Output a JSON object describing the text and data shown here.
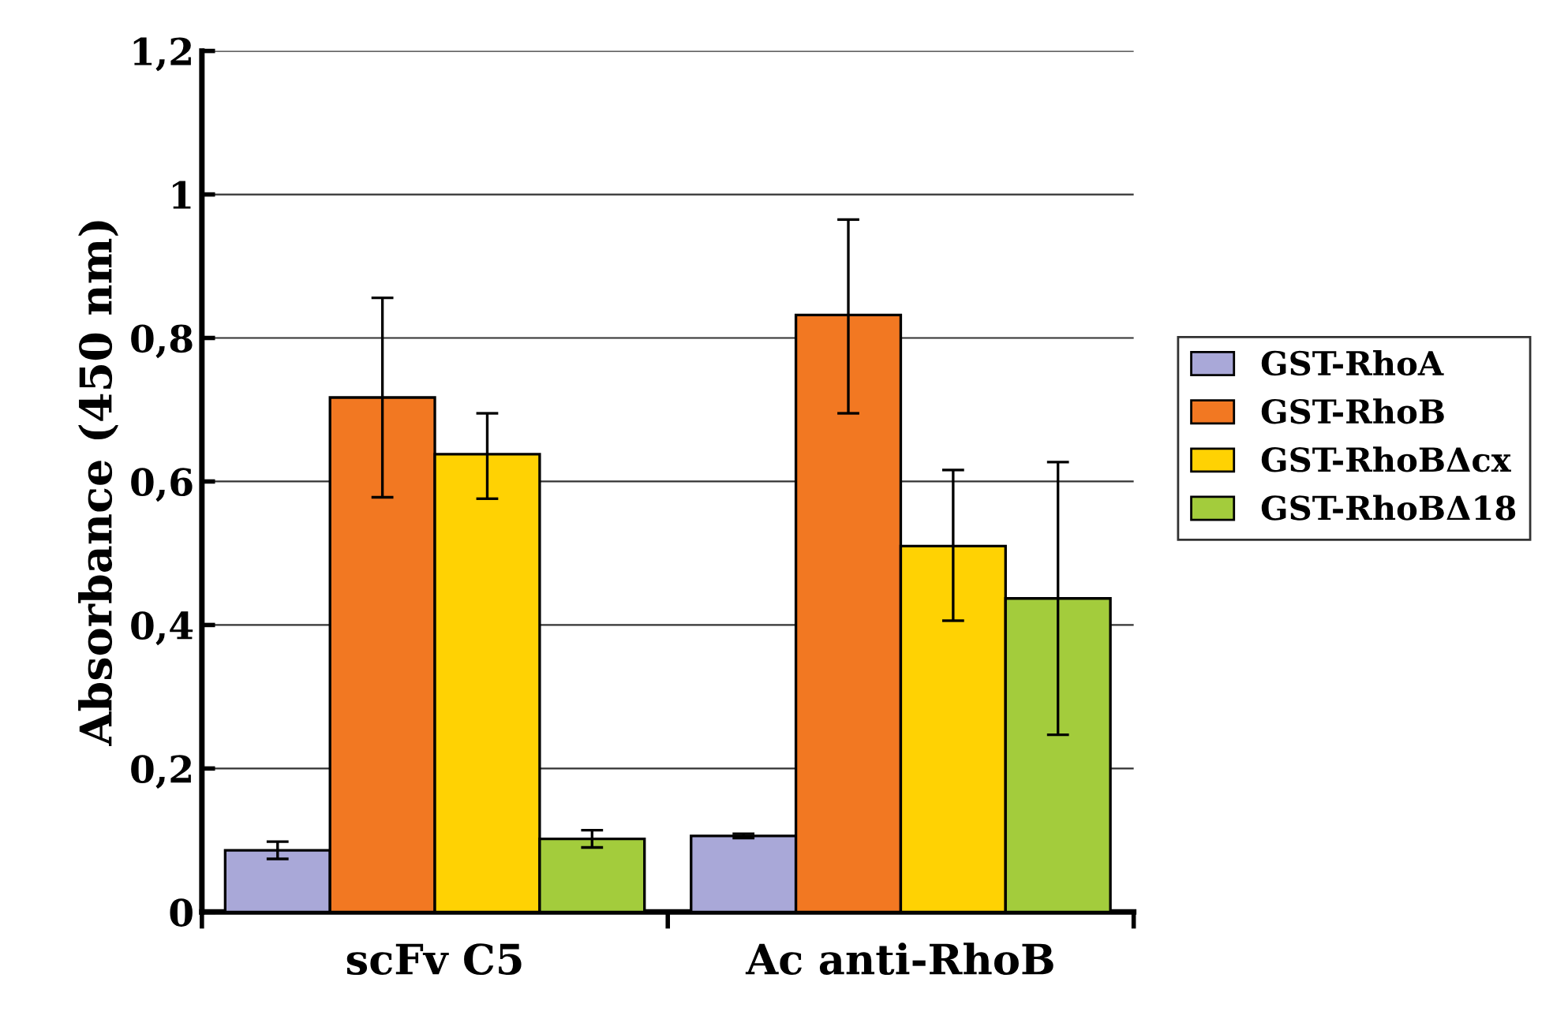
{
  "chart_data": {
    "type": "bar",
    "ylabel": "Absorbance (450 nm)",
    "categories": [
      "scFv C5",
      "Ac anti-RhoB"
    ],
    "series": [
      {
        "name": "GST-RhoA",
        "color": "#a9a8d8",
        "values": [
          0.086,
          0.106
        ],
        "errors": [
          0.012,
          0.003
        ]
      },
      {
        "name": "GST-RhoB",
        "color": "#f27822",
        "values": [
          0.717,
          0.832
        ],
        "errors": [
          [
            0.578,
            0.856
          ],
          [
            0.695,
            0.965
          ]
        ]
      },
      {
        "name": "GST-RhoBΔcx",
        "color": "#ffd203",
        "values": [
          0.638,
          0.51
        ],
        "errors": [
          [
            0.576,
            0.695
          ],
          [
            0.406,
            0.616
          ]
        ]
      },
      {
        "name": "GST-RhoBΔ18",
        "color": "#a3cc3c",
        "values": [
          0.102,
          0.437
        ],
        "errors": [
          0.012,
          [
            0.247,
            0.627
          ]
        ]
      }
    ],
    "ylim": [
      0,
      1.2
    ],
    "yticks": [
      {
        "value": 0,
        "label": "0"
      },
      {
        "value": 0.2,
        "label": "0,2"
      },
      {
        "value": 0.4,
        "label": "0,4"
      },
      {
        "value": 0.6,
        "label": "0,6"
      },
      {
        "value": 0.8,
        "label": "0,8"
      },
      {
        "value": 1,
        "label": "1"
      },
      {
        "value": 1.2,
        "label": "1,2"
      }
    ],
    "grid": "y",
    "legend": "right"
  }
}
